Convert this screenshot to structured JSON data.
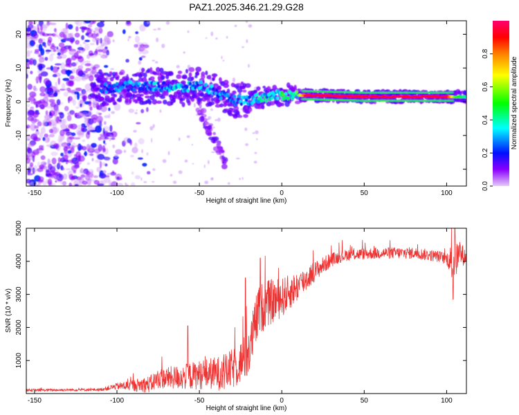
{
  "figure": {
    "title": "PAZ1.2025.346.21.29.G28"
  },
  "chart_data": [
    {
      "type": "heatmap",
      "title": "PAZ1.2025.346.21.29.G28",
      "xlabel": "Height of straight line (km)",
      "ylabel": "Frequency (Hz)",
      "xlim": [
        -155,
        112
      ],
      "ylim": [
        -25,
        24
      ],
      "xticks": [
        -150,
        -100,
        -50,
        0,
        50,
        100
      ],
      "yticks": [
        -20,
        -10,
        0,
        10,
        20
      ],
      "xtick_labels": [
        "-150",
        "-100",
        "-50",
        "0",
        "50",
        "100"
      ],
      "ytick_labels": [
        "-20",
        "-10",
        "0",
        "10",
        "20"
      ],
      "colorbar": {
        "label": "Normalized spectral amplitude",
        "range": [
          0,
          1
        ],
        "ticks": [
          0.0,
          0.2,
          0.4,
          0.6,
          0.8
        ],
        "tick_labels": [
          "0.0",
          "0.2",
          "0.4",
          "0.6",
          "0.8"
        ],
        "colors": [
          "#e6ccf5",
          "#8a00ff",
          "#0010ff",
          "#00ffff",
          "#00ff00",
          "#ffff00",
          "#ff8000",
          "#ff0000",
          "#ff0070"
        ]
      },
      "ridge": [
        {
          "x": -108,
          "y": 4.0
        },
        {
          "x": -90,
          "y": 4.8
        },
        {
          "x": -75,
          "y": 4.5
        },
        {
          "x": -60,
          "y": 4.0
        },
        {
          "x": -50,
          "y": 5.0
        },
        {
          "x": -42,
          "y": 3.5
        },
        {
          "x": -35,
          "y": 1.5
        },
        {
          "x": -30,
          "y": 0.5
        },
        {
          "x": -20,
          "y": 0.5
        },
        {
          "x": -10,
          "y": 1.5
        },
        {
          "x": 0,
          "y": 2.0
        },
        {
          "x": 10,
          "y": 2.0
        },
        {
          "x": 50,
          "y": 1.5
        },
        {
          "x": 100,
          "y": 1.5
        },
        {
          "x": 110,
          "y": 1.5
        }
      ],
      "ridge_amplitude": [
        {
          "x": -110,
          "a": 0.25
        },
        {
          "x": -60,
          "a": 0.35
        },
        {
          "x": -30,
          "a": 0.25
        },
        {
          "x": -15,
          "a": 0.35
        },
        {
          "x": 0,
          "a": 0.45
        },
        {
          "x": 10,
          "a": 0.55
        },
        {
          "x": 15,
          "a": 0.95
        },
        {
          "x": 100,
          "a": 0.95
        },
        {
          "x": 105,
          "a": 0.55
        },
        {
          "x": 112,
          "a": 0.4
        }
      ]
    },
    {
      "type": "line",
      "xlabel": "Height of straight line (km)",
      "ylabel": "SNR (10 * v/v)",
      "xlim": [
        -155,
        112
      ],
      "ylim": [
        0,
        5000
      ],
      "xticks": [
        -150,
        -100,
        -50,
        0,
        50,
        100
      ],
      "yticks": [
        1000,
        2000,
        3000,
        4000,
        5000
      ],
      "xtick_labels": [
        "-150",
        "-100",
        "-50",
        "0",
        "50",
        "100"
      ],
      "ytick_labels": [
        "1000",
        "2000",
        "3000",
        "4000",
        "5000"
      ],
      "series": [
        {
          "name": "SNR",
          "color": "#ee3333",
          "envelope": [
            {
              "x": -155,
              "y": 100
            },
            {
              "x": -110,
              "y": 120
            },
            {
              "x": -100,
              "y": 220
            },
            {
              "x": -80,
              "y": 280
            },
            {
              "x": -75,
              "y": 450
            },
            {
              "x": -60,
              "y": 500
            },
            {
              "x": -45,
              "y": 600
            },
            {
              "x": -35,
              "y": 620
            },
            {
              "x": -28,
              "y": 800
            },
            {
              "x": -20,
              "y": 1200
            },
            {
              "x": -17,
              "y": 1900
            },
            {
              "x": -14,
              "y": 2500
            },
            {
              "x": -10,
              "y": 2700
            },
            {
              "x": 0,
              "y": 2900
            },
            {
              "x": 10,
              "y": 3250
            },
            {
              "x": 20,
              "y": 3700
            },
            {
              "x": 30,
              "y": 4050
            },
            {
              "x": 40,
              "y": 4200
            },
            {
              "x": 60,
              "y": 4250
            },
            {
              "x": 80,
              "y": 4250
            },
            {
              "x": 95,
              "y": 4150
            },
            {
              "x": 102,
              "y": 4050
            },
            {
              "x": 104,
              "y": 3900
            },
            {
              "x": 108,
              "y": 4250
            },
            {
              "x": 112,
              "y": 4100
            }
          ],
          "noise": [
            {
              "x": -155,
              "a": 80
            },
            {
              "x": -110,
              "a": 80
            },
            {
              "x": -100,
              "a": 200
            },
            {
              "x": -75,
              "a": 600
            },
            {
              "x": -40,
              "a": 1000
            },
            {
              "x": -25,
              "a": 1300
            },
            {
              "x": -15,
              "a": 1600
            },
            {
              "x": 0,
              "a": 1200
            },
            {
              "x": 20,
              "a": 600
            },
            {
              "x": 35,
              "a": 350
            },
            {
              "x": 100,
              "a": 350
            },
            {
              "x": 104,
              "a": 1300
            },
            {
              "x": 112,
              "a": 400
            }
          ],
          "spikes": [
            {
              "x": -57,
              "y": 2050
            },
            {
              "x": -22,
              "y": 3500
            },
            {
              "x": -13,
              "y": 4100
            },
            {
              "x": 104,
              "y": 2850
            },
            {
              "x": 105,
              "y": 5000
            }
          ]
        }
      ]
    }
  ]
}
